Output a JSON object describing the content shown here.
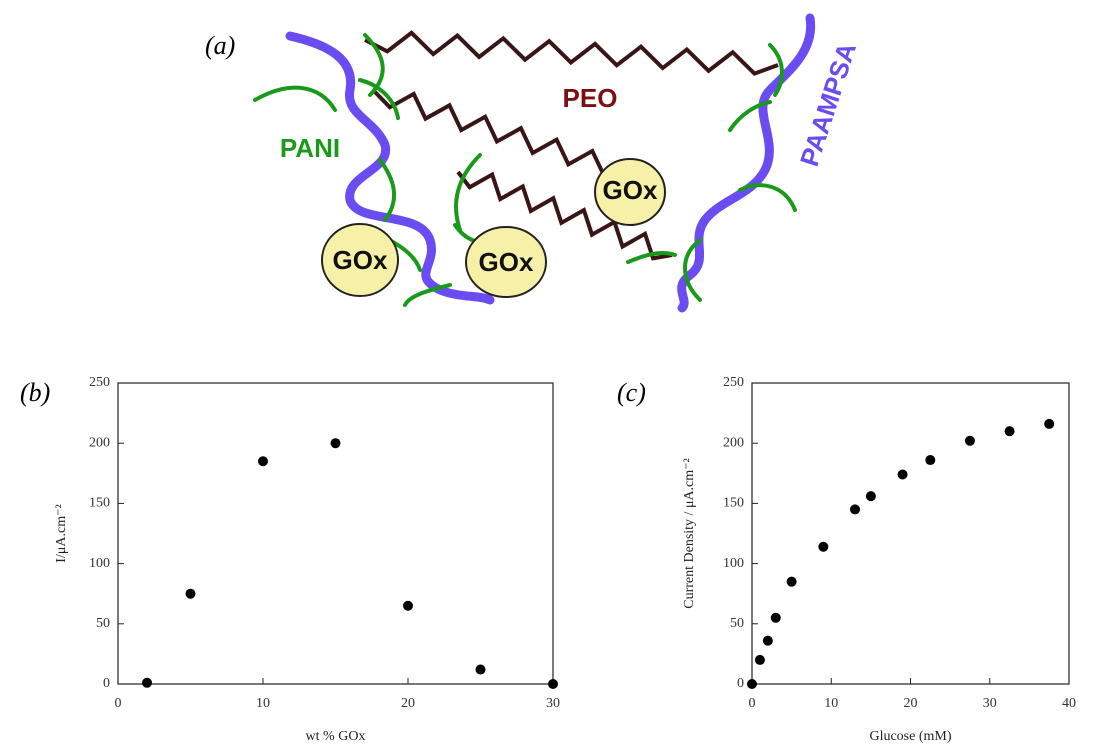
{
  "diagram": {
    "panel_label": "(a)",
    "peo_label": "PEO",
    "pani_label": "PANI",
    "paampsa_label": "PAAMPSA",
    "enzyme_labels": [
      "GOx",
      "GOx",
      "GOx"
    ]
  },
  "chart_data": [
    {
      "type": "scatter",
      "panel_label": "(b)",
      "x_label": "wt % GOx",
      "y_label": "I/μA.cm⁻²",
      "x": [
        2,
        5,
        10,
        15,
        20,
        25,
        30
      ],
      "values": [
        1,
        75,
        185,
        200,
        65,
        12,
        0
      ],
      "color": "#000000",
      "xlim": [
        0,
        30
      ],
      "ylim": [
        0,
        250
      ],
      "xticks": [
        0,
        10,
        20,
        30
      ],
      "yticks": [
        0,
        50,
        100,
        150,
        200,
        250
      ]
    },
    {
      "type": "scatter",
      "panel_label": "(c)",
      "x_label": "Glucose (mM)",
      "y_label": "Current Density / μA.cm⁻²",
      "x": [
        0,
        1,
        2,
        3,
        5,
        9,
        13,
        15,
        19,
        22.5,
        27.5,
        32.5,
        37.5
      ],
      "values": [
        0,
        20,
        36,
        55,
        85,
        114,
        145,
        156,
        174,
        186,
        202,
        210,
        216
      ],
      "color": "#000000",
      "xlim": [
        0,
        40
      ],
      "ylim": [
        0,
        250
      ],
      "xticks": [
        0,
        10,
        20,
        30,
        40
      ],
      "yticks": [
        0,
        50,
        100,
        150,
        200,
        250
      ]
    }
  ]
}
